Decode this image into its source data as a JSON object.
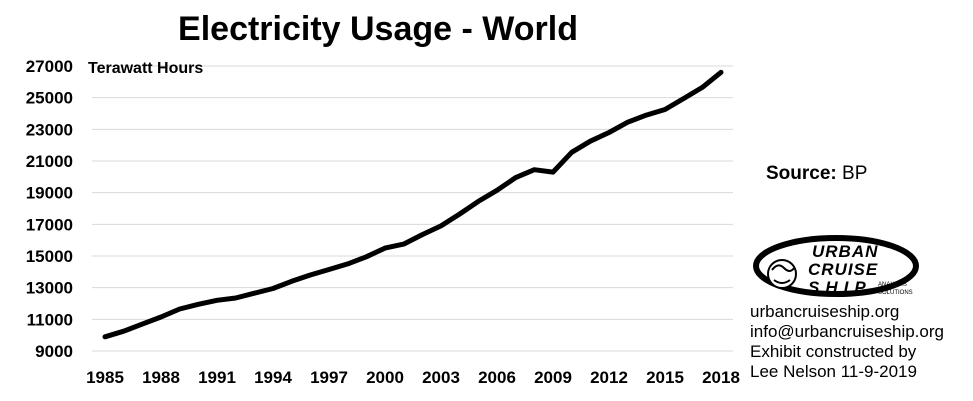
{
  "chart_data": {
    "type": "line",
    "title": "Electricity Usage - World",
    "ylabel": "Terawatt Hours",
    "xlabel": "",
    "ylim": [
      9000,
      27000
    ],
    "xlim": [
      1985,
      2018
    ],
    "yticks": [
      9000,
      11000,
      13000,
      15000,
      17000,
      19000,
      21000,
      23000,
      25000,
      27000
    ],
    "xticks": [
      1985,
      1988,
      1991,
      1994,
      1997,
      2000,
      2003,
      2006,
      2009,
      2012,
      2015,
      2018
    ],
    "grid": "horizontal",
    "x": [
      1985,
      1986,
      1987,
      1988,
      1989,
      1990,
      1991,
      1992,
      1993,
      1994,
      1995,
      1996,
      1997,
      1998,
      1999,
      2000,
      2001,
      2002,
      2003,
      2004,
      2005,
      2006,
      2007,
      2008,
      2009,
      2010,
      2011,
      2012,
      2013,
      2014,
      2015,
      2016,
      2017,
      2018
    ],
    "series": [
      {
        "values": [
          9900,
          10250,
          10700,
          11150,
          11650,
          11950,
          12200,
          12350,
          12650,
          12950,
          13400,
          13800,
          14150,
          14500,
          14950,
          15500,
          15750,
          16350,
          16900,
          17650,
          18450,
          19150,
          19950,
          20450,
          20300,
          21550,
          22250,
          22800,
          23450,
          23900,
          24250,
          24950,
          25650,
          26600
        ]
      }
    ]
  },
  "colors": {
    "line": "#000000",
    "grid": "#d9d9d9"
  },
  "source": {
    "label": "Source:",
    "value": "BP"
  },
  "logo": {
    "line1": "URBAN",
    "line2": "CRUISE",
    "line3": "SHIP",
    "sub1": "ANALYSIS",
    "sub2": "SOLUTIONS"
  },
  "credits": {
    "website": "urbancruiseship.org",
    "email": "info@urbancruiseship.org",
    "line3": "Exhibit constructed by",
    "line4": "Lee Nelson 11-9-2019"
  }
}
